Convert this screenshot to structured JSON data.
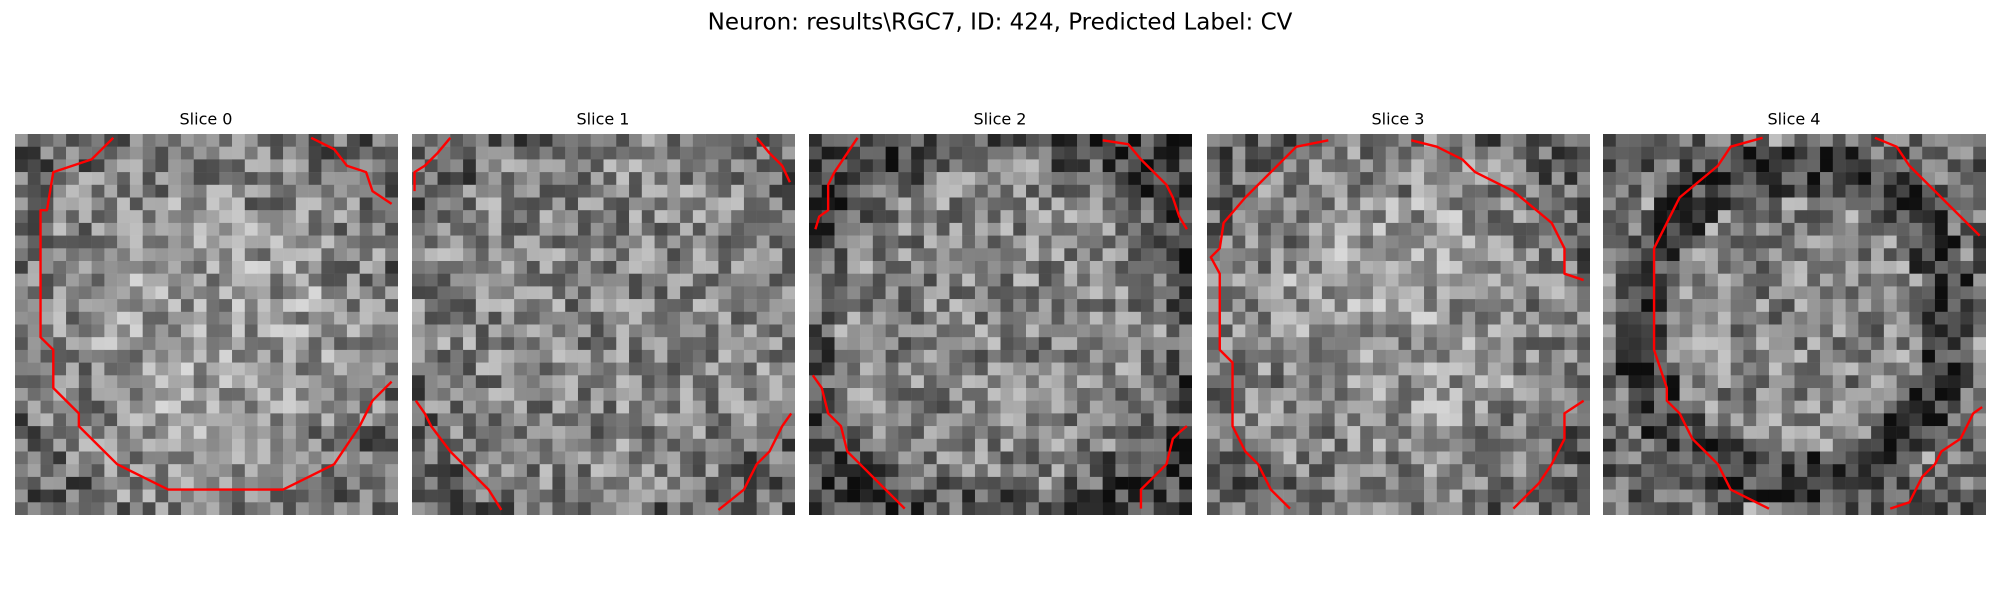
{
  "title": "Neuron: results\\RGC7, ID: 424, Predicted Label: CV",
  "panels": [
    {
      "title": "Slice 0"
    },
    {
      "title": "Slice 1"
    },
    {
      "title": "Slice 2"
    },
    {
      "title": "Slice 3"
    },
    {
      "title": "Slice 4"
    }
  ]
}
